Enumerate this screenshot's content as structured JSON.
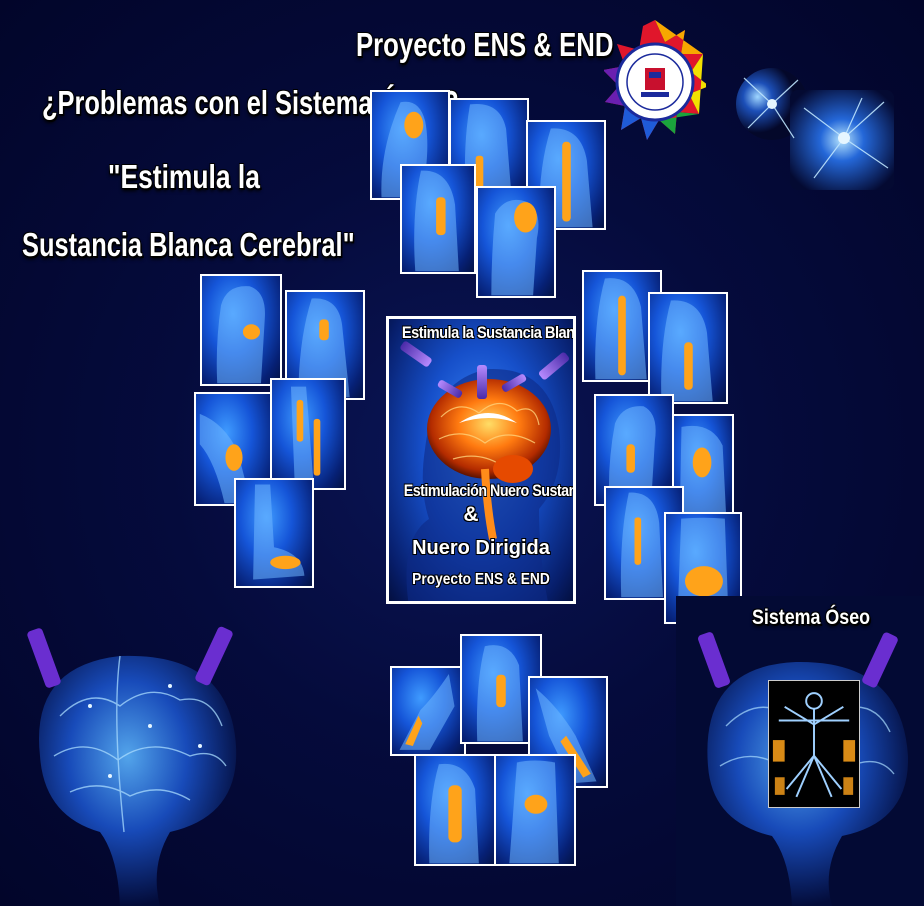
{
  "header": {
    "project_title": "Proyecto ENS & END",
    "question": "¿Problemas con el Sistema Óseo?",
    "slogan_line1": "\"Estimula la",
    "slogan_line2": "Sustancia Blanca Cerebral\""
  },
  "center_panel": {
    "top_text": "Estimula la Sustancia Blanca",
    "line1": "Estimulación Nuero Sustancial",
    "ampersand": "&",
    "line2": "Nuero Dirigida",
    "line3": "Proyecto ENS & END"
  },
  "right_panel": {
    "label": "Sistema Óseo"
  },
  "colors": {
    "background": "#050b3c",
    "tile_blue": "#1555d8",
    "bone_orange": "#ffa31a",
    "text": "#ffffff"
  },
  "icons": {
    "logo": "emblem-seal-icon",
    "neuron": "neuron-network-icon",
    "brain": "brain-icon",
    "stimulator": "stimulator-device-icon"
  }
}
